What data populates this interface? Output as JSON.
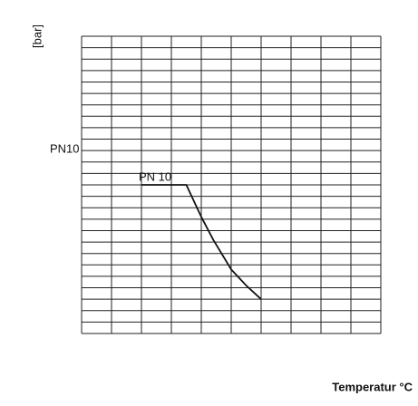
{
  "chart_data": {
    "type": "line",
    "y_label": "[bar]",
    "x_label": "Temperatur  °C",
    "level_label": "PN10",
    "curve_label": "PN 10",
    "xlim": [
      0,
      10
    ],
    "ylim": [
      0,
      26
    ],
    "grid": true,
    "x": [
      2,
      3.5,
      4,
      4.4,
      5,
      5.5,
      6
    ],
    "series": [
      {
        "name": "PN 10",
        "color": "#111111",
        "values": [
          13,
          13,
          10.2,
          8.2,
          5.6,
          4.2,
          3
        ]
      }
    ]
  }
}
